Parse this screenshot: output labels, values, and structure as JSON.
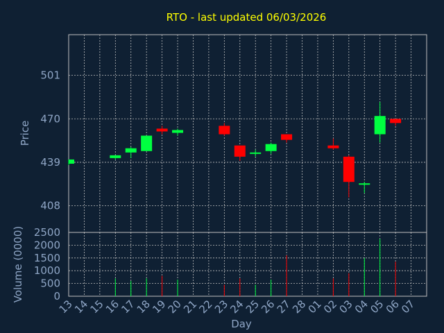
{
  "chart_data": {
    "type": "candlestick",
    "title": "RTO - last updated 06/03/2026",
    "xlabel": "Day",
    "price_panel": {
      "ylabel": "Price",
      "yticks": [
        408,
        439,
        470,
        501
      ],
      "ylim": [
        389,
        530
      ],
      "grid": true
    },
    "volume_panel": {
      "ylabel": "Volume (0000)",
      "yticks": [
        0,
        500,
        1000,
        1500,
        2000,
        2500
      ],
      "ylim": [
        0,
        2500
      ],
      "grid": true
    },
    "categories": [
      "13",
      "14",
      "15",
      "16",
      "17",
      "18",
      "19",
      "20",
      "21",
      "22",
      "23",
      "24",
      "25",
      "26",
      "27",
      "28",
      "01",
      "02",
      "03",
      "04",
      "05",
      "06",
      "07"
    ],
    "colors": {
      "up": "#00ff40",
      "down": "#ff0000",
      "background": "#0f2033",
      "grid": "#c0c0c0",
      "title": "#ffff00",
      "labels": "#8fa6c6"
    },
    "candles": [
      {
        "x": "13",
        "open": 438,
        "high": 441,
        "low": 437,
        "close": 441,
        "volume": 0
      },
      {
        "x": "16",
        "open": 442,
        "high": 444,
        "low": 441,
        "close": 444,
        "volume": 700
      },
      {
        "x": "17",
        "open": 446,
        "high": 450,
        "low": 442,
        "close": 449,
        "volume": 600
      },
      {
        "x": "18",
        "open": 447,
        "high": 458,
        "low": 447,
        "close": 458,
        "volume": 700
      },
      {
        "x": "19",
        "open": 463,
        "high": 465,
        "low": 459,
        "close": 461,
        "volume": 800
      },
      {
        "x": "20",
        "open": 460,
        "high": 463,
        "low": 458,
        "close": 462,
        "volume": 650
      },
      {
        "x": "23",
        "open": 465,
        "high": 467,
        "low": 458,
        "close": 459,
        "volume": 450
      },
      {
        "x": "24",
        "open": 451,
        "high": 451,
        "low": 440,
        "close": 443,
        "volume": 700
      },
      {
        "x": "25",
        "open": 445,
        "high": 448,
        "low": 443,
        "close": 446,
        "volume": 450
      },
      {
        "x": "26",
        "open": 447,
        "high": 453,
        "low": 445,
        "close": 452,
        "volume": 650
      },
      {
        "x": "27",
        "open": 459,
        "high": 459,
        "low": 453,
        "close": 455,
        "volume": 1600
      },
      {
        "x": "02",
        "open": 451,
        "high": 456,
        "low": 448,
        "close": 449,
        "volume": 700
      },
      {
        "x": "03",
        "open": 443,
        "high": 444,
        "low": 414,
        "close": 425,
        "volume": 900
      },
      {
        "x": "04",
        "open": 423,
        "high": 425,
        "low": 417,
        "close": 424,
        "volume": 1500
      },
      {
        "x": "05",
        "open": 459,
        "high": 482,
        "low": 453,
        "close": 472,
        "volume": 2250
      },
      {
        "x": "06",
        "open": 470,
        "high": 470,
        "low": 465,
        "close": 467,
        "volume": 1350
      }
    ]
  }
}
